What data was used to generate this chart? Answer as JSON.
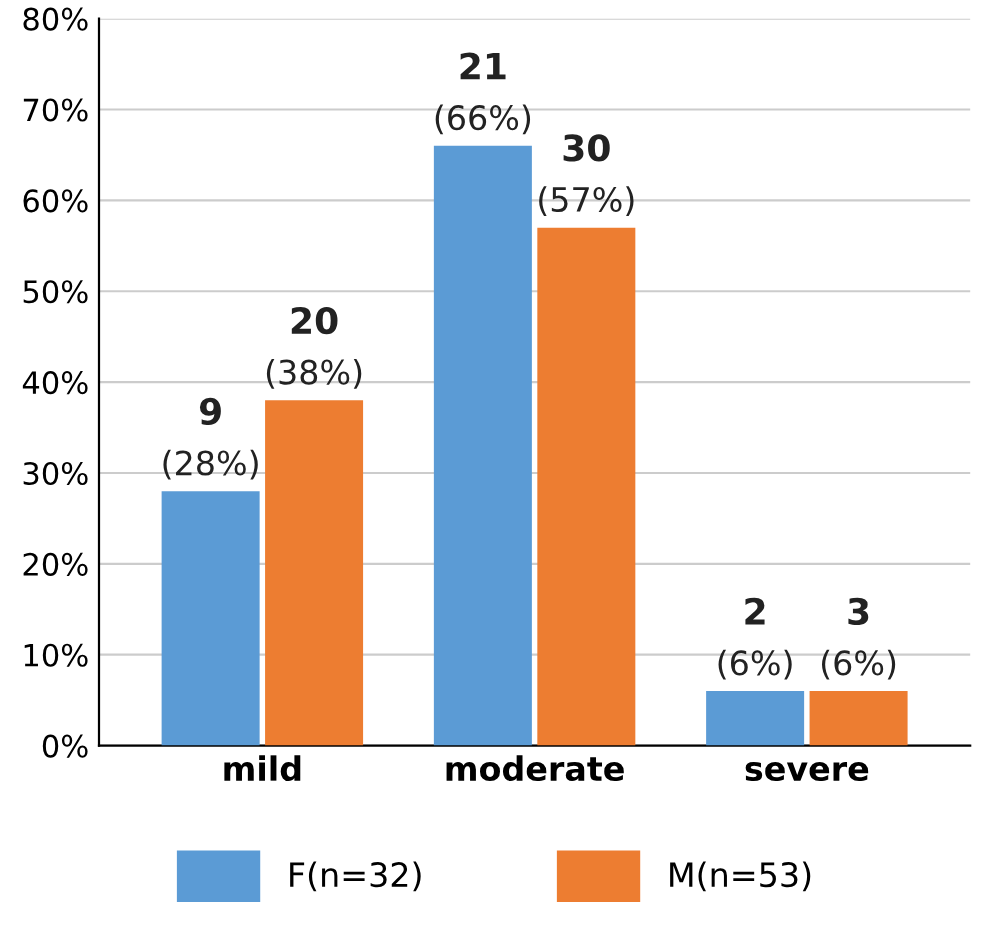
{
  "chart_data": {
    "type": "bar",
    "categories": [
      "mild",
      "moderate",
      "severe"
    ],
    "series": [
      {
        "name": "F(n=32)",
        "color": "#5b9bd5",
        "values": [
          28,
          66,
          6
        ],
        "value_labels": [
          "9\n(28%)",
          "21\n(66%)",
          "2\n(6%)"
        ]
      },
      {
        "name": "M(n=53)",
        "color": "#ed7d31",
        "values": [
          38,
          57,
          6
        ],
        "value_labels": [
          "20\n(38%)",
          "30\n(57%)",
          "3\n(6%)"
        ]
      }
    ],
    "ylim": [
      0,
      80
    ],
    "yticks": [
      {
        "value": 0,
        "label": "0%"
      },
      {
        "value": 10,
        "label": "10%"
      },
      {
        "value": 20,
        "label": "20%"
      },
      {
        "value": 30,
        "label": "30%"
      },
      {
        "value": 40,
        "label": "40%"
      },
      {
        "value": 50,
        "label": "50%"
      },
      {
        "value": 60,
        "label": "60%"
      },
      {
        "value": 70,
        "label": "70%"
      },
      {
        "value": 80,
        "label": "80%"
      }
    ],
    "grid": "y",
    "legend": "bottom"
  }
}
